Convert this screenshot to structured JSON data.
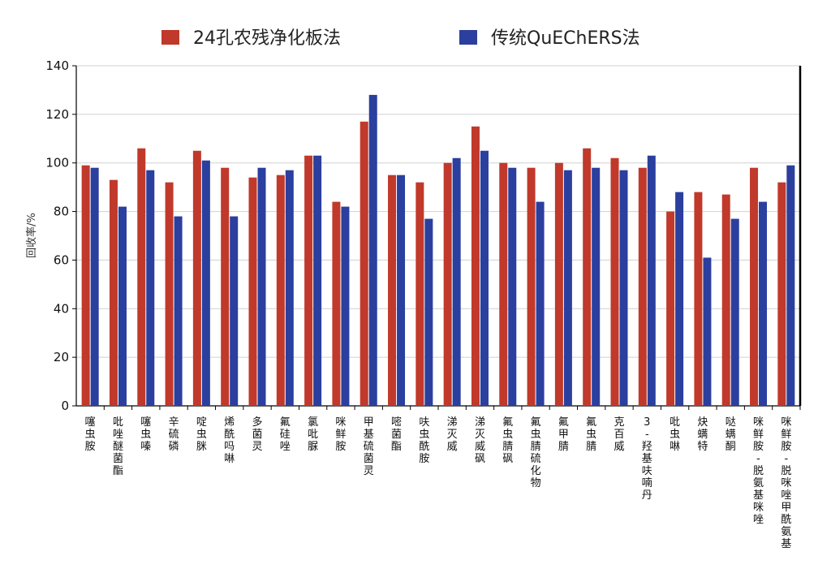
{
  "chart_data": {
    "type": "bar",
    "title": "",
    "xlabel": "",
    "ylabel": "回收率/%",
    "ylim": [
      0,
      140
    ],
    "yticks": [
      0,
      20,
      40,
      60,
      80,
      100,
      120,
      140
    ],
    "grid": true,
    "legend_position": "top",
    "categories": [
      "噻虫胺",
      "吡唑醚菌酯",
      "噻虫嗪",
      "辛硫磷",
      "啶虫脒",
      "烯酰吗啉",
      "多菌灵",
      "氟硅唑",
      "氯吡脲",
      "咪鲜胺",
      "甲基硫菌灵",
      "嘧菌酯",
      "呋虫酰胺",
      "涕灭威",
      "涕灭威砜",
      "氟虫腈砜",
      "氟虫腈硫化物",
      "氟甲腈",
      "氟虫腈",
      "克百威",
      "3-羟基呋喃丹",
      "吡虫啉",
      "炔螨特",
      "哒螨酮",
      "咪鲜胺-脱氨基咪唑",
      "咪鲜胺-脱咪唑甲酰氨基"
    ],
    "series": [
      {
        "name": "24孔农残净化板法",
        "color": "#c0392b",
        "values": [
          99,
          93,
          106,
          92,
          105,
          98,
          94,
          95,
          103,
          84,
          117,
          95,
          92,
          100,
          115,
          100,
          98,
          100,
          106,
          102,
          98,
          80,
          88,
          87,
          98,
          92
        ]
      },
      {
        "name": "传统QuEChERS法",
        "color": "#2a3f9e",
        "values": [
          98,
          82,
          97,
          78,
          101,
          78,
          98,
          97,
          103,
          82,
          128,
          95,
          77,
          102,
          105,
          98,
          84,
          97,
          98,
          97,
          103,
          88,
          61,
          77,
          84,
          99
        ]
      }
    ]
  }
}
